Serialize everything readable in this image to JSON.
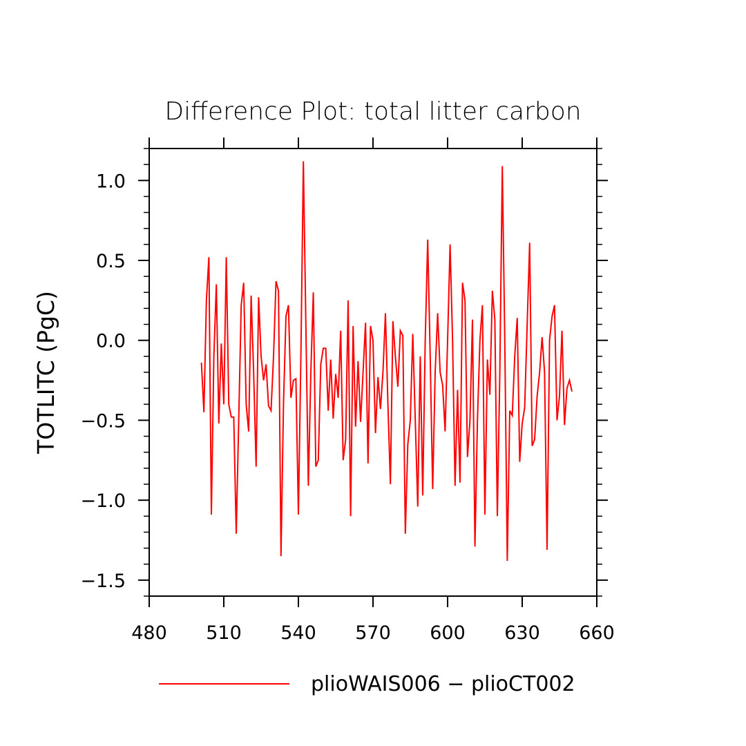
{
  "chart_data": {
    "type": "line",
    "title": "Difference Plot: total litter carbon",
    "xlabel": "",
    "ylabel": "TOTLITC   (PgC)",
    "xlim": [
      480,
      660
    ],
    "ylim": [
      -1.6,
      1.2
    ],
    "x_ticks": [
      480,
      510,
      540,
      570,
      600,
      630,
      660
    ],
    "x_tick_labels": [
      "480",
      "510",
      "540",
      "570",
      "600",
      "630",
      "660"
    ],
    "y_ticks": [
      1.0,
      0.5,
      0.0,
      -0.5,
      -1.0,
      -1.5
    ],
    "y_tick_labels": [
      "1.0",
      "0.5",
      "0.0",
      "−0.5",
      "−1.0",
      "−1.5"
    ],
    "grid": false,
    "legend_position": "bottom",
    "series": [
      {
        "name": "plioWAIS006 − plioCT002",
        "color": "#ff0000",
        "x": [
          501,
          502,
          503,
          504,
          505,
          506,
          507,
          508,
          509,
          510,
          511,
          512,
          513,
          514,
          515,
          516,
          517,
          518,
          519,
          520,
          521,
          522,
          523,
          524,
          525,
          526,
          527,
          528,
          529,
          530,
          531,
          532,
          533,
          534,
          535,
          536,
          537,
          538,
          539,
          540,
          541,
          542,
          543,
          544,
          545,
          546,
          547,
          548,
          549,
          550,
          551,
          552,
          553,
          554,
          555,
          556,
          557,
          558,
          559,
          560,
          561,
          562,
          563,
          564,
          565,
          566,
          567,
          568,
          569,
          570,
          571,
          572,
          573,
          574,
          575,
          576,
          577,
          578,
          579,
          580,
          581,
          582,
          583,
          584,
          585,
          586,
          587,
          588,
          589,
          590,
          591,
          592,
          593,
          594,
          595,
          596,
          597,
          598,
          599,
          600,
          601,
          602,
          603,
          604,
          605,
          606,
          607,
          608,
          609,
          610,
          611,
          612,
          613,
          614,
          615,
          616,
          617,
          618,
          619,
          620,
          621,
          622,
          623,
          624,
          625,
          626,
          627,
          628,
          629,
          630,
          631,
          632,
          633,
          634,
          635,
          636,
          637,
          638,
          639,
          640,
          641,
          642,
          643,
          644,
          645,
          646,
          647,
          648,
          649,
          650
        ],
        "values": [
          -0.14,
          -0.45,
          0.25,
          0.52,
          -1.09,
          -0.1,
          0.35,
          -0.52,
          -0.02,
          -0.4,
          0.52,
          -0.4,
          -0.48,
          -0.48,
          -1.21,
          -0.5,
          0.22,
          0.36,
          -0.4,
          -0.57,
          0.28,
          -0.2,
          -0.79,
          0.27,
          -0.1,
          -0.25,
          -0.15,
          -0.41,
          -0.44,
          -0.1,
          0.37,
          0.31,
          -1.35,
          -0.4,
          0.15,
          0.22,
          -0.36,
          -0.25,
          -0.24,
          -1.09,
          -0.1,
          1.12,
          0.1,
          -0.91,
          -0.2,
          0.3,
          -0.79,
          -0.75,
          -0.15,
          -0.05,
          -0.05,
          -0.44,
          -0.12,
          -0.49,
          -0.21,
          -0.36,
          0.06,
          -0.75,
          -0.62,
          0.25,
          -1.1,
          0.09,
          -0.54,
          -0.13,
          -0.51,
          -0.2,
          0.11,
          -0.77,
          0.09,
          0.0,
          -0.58,
          -0.23,
          -0.43,
          -0.2,
          0.17,
          -0.4,
          -0.9,
          0.12,
          -0.1,
          -0.29,
          0.06,
          0.03,
          -1.21,
          -0.65,
          -0.5,
          0.04,
          -0.5,
          -1.04,
          -0.1,
          -0.97,
          0.0,
          0.63,
          -0.1,
          -0.93,
          -0.2,
          0.17,
          -0.2,
          -0.28,
          -0.57,
          0.0,
          0.6,
          0.0,
          -0.91,
          -0.31,
          -0.89,
          0.36,
          0.25,
          -0.73,
          -0.5,
          0.13,
          -1.29,
          -0.5,
          0.0,
          0.22,
          -1.09,
          -0.12,
          -0.34,
          0.31,
          0.13,
          -1.1,
          -0.2,
          1.09,
          0.0,
          -1.38,
          -0.44,
          -0.47,
          -0.1,
          0.14,
          -0.76,
          -0.52,
          -0.42,
          0.1,
          0.61,
          -0.66,
          -0.62,
          -0.35,
          -0.2,
          0.02,
          -0.2,
          -1.31,
          0.0,
          0.15,
          0.22,
          -0.5,
          -0.35,
          0.06,
          -0.53,
          -0.3,
          -0.25,
          -0.32
        ]
      }
    ]
  }
}
